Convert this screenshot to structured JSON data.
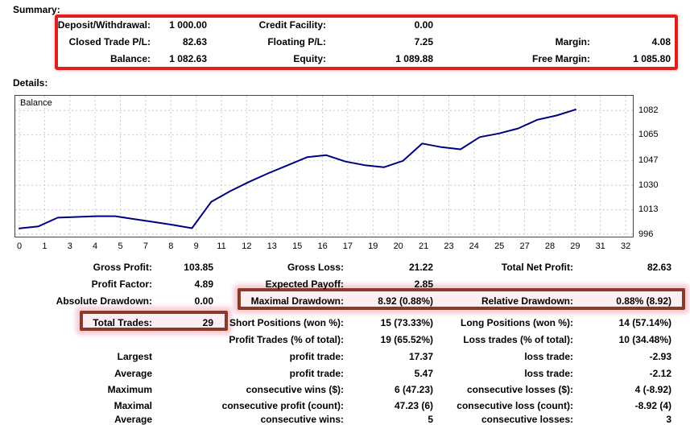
{
  "summary": {
    "title": "Summary:",
    "rows": [
      {
        "c1_label": "Deposit/Withdrawal:",
        "c1_value": "1 000.00",
        "c2_label": "Credit Facility:",
        "c2_value": "0.00",
        "c3_label": "",
        "c3_value": ""
      },
      {
        "c1_label": "Closed Trade P/L:",
        "c1_value": "82.63",
        "c2_label": "Floating P/L:",
        "c2_value": "7.25",
        "c3_label": "Margin:",
        "c3_value": "4.08"
      },
      {
        "c1_label": "Balance:",
        "c1_value": "1 082.63",
        "c2_label": "Equity:",
        "c2_value": "1 089.88",
        "c3_label": "Free Margin:",
        "c3_value": "1 085.80"
      }
    ]
  },
  "details": {
    "title": "Details:",
    "rows": [
      {
        "a_label": "Gross Profit:",
        "a_value": "103.85",
        "b_label": "Gross Loss:",
        "b_value": "21.22",
        "c_label": "Total Net Profit:",
        "c_value": "82.63"
      },
      {
        "a_label": "Profit Factor:",
        "a_value": "4.89",
        "b_label": "Expected Payoff:",
        "b_value": "2.85",
        "c_label": "",
        "c_value": ""
      },
      {
        "a_label": "Absolute Drawdown:",
        "a_value": "0.00",
        "b_label": "Maximal Drawdown:",
        "b_value": "8.92 (0.88%)",
        "c_label": "Relative Drawdown:",
        "c_value": "0.88% (8.92)"
      },
      {
        "a_label": "Total Trades:",
        "a_value": "29",
        "b_label": "Short Positions (won %):",
        "b_value": "15 (73.33%)",
        "c_label": "Long Positions (won %):",
        "c_value": "14 (57.14%)"
      },
      {
        "a_label": "",
        "a_value": "",
        "b_label": "Profit Trades (% of total):",
        "b_value": "19 (65.52%)",
        "c_label": "Loss trades (% of total):",
        "c_value": "10 (34.48%)"
      },
      {
        "a_label": "Largest",
        "a_value": "",
        "b_label": "profit trade:",
        "b_value": "17.37",
        "c_label": "loss trade:",
        "c_value": "-2.93"
      },
      {
        "a_label": "Average",
        "a_value": "",
        "b_label": "profit trade:",
        "b_value": "5.47",
        "c_label": "loss trade:",
        "c_value": "-2.12"
      },
      {
        "a_label": "Maximum",
        "a_value": "",
        "b_label": "consecutive wins ($):",
        "b_value": "6 (47.23)",
        "c_label": "consecutive losses ($):",
        "c_value": "4 (-8.92)"
      },
      {
        "a_label": "Maximal",
        "a_value": "",
        "b_label": "consecutive profit (count):",
        "b_value": "47.23 (6)",
        "c_label": "consecutive loss (count):",
        "c_value": "-8.92 (4)"
      },
      {
        "a_label": "Average",
        "a_value": "",
        "b_label": "consecutive wins:",
        "b_value": "5",
        "c_label": "consecutive losses:",
        "c_value": "3"
      }
    ]
  },
  "chart_data": {
    "type": "line",
    "title": "Balance",
    "legend_position": "top-left-inside",
    "grid": "dashed",
    "x_range": [
      0,
      32
    ],
    "y_range_displayed": [
      996,
      1082
    ],
    "x_ticks": [
      "0",
      "1",
      "3",
      "4",
      "5",
      "7",
      "8",
      "9",
      "11",
      "12",
      "13",
      "15",
      "16",
      "17",
      "19",
      "20",
      "21",
      "23",
      "24",
      "25",
      "27",
      "28",
      "29",
      "31",
      "32"
    ],
    "y_ticks": [
      1082,
      1065,
      1047,
      1030,
      1013,
      996
    ],
    "series": [
      {
        "name": "Balance",
        "color": "#000080",
        "x": [
          0,
          1,
          2,
          3,
          4,
          5,
          6,
          7,
          8,
          9,
          10,
          11,
          12,
          13,
          14,
          15,
          16,
          17,
          18,
          19,
          20,
          21,
          22,
          23,
          24,
          25,
          26,
          27,
          28,
          29
        ],
        "values": [
          1000,
          1001.5,
          1007.5,
          1008,
          1008.5,
          1008.5,
          1006.5,
          1004.5,
          1002.5,
          1000.2,
          1018.5,
          1026,
          1032.5,
          1038.5,
          1044,
          1049.5,
          1050.9,
          1046.5,
          1044,
          1042.5,
          1047,
          1059,
          1056.5,
          1055,
          1063.5,
          1066,
          1069.5,
          1075.5,
          1078.5,
          1082.6
        ]
      }
    ]
  },
  "annotations": {
    "summary_box_color": "#e01e1e",
    "detail_box_border_color": "#8a3a28",
    "detail_box_fill": "#fdeef2"
  }
}
